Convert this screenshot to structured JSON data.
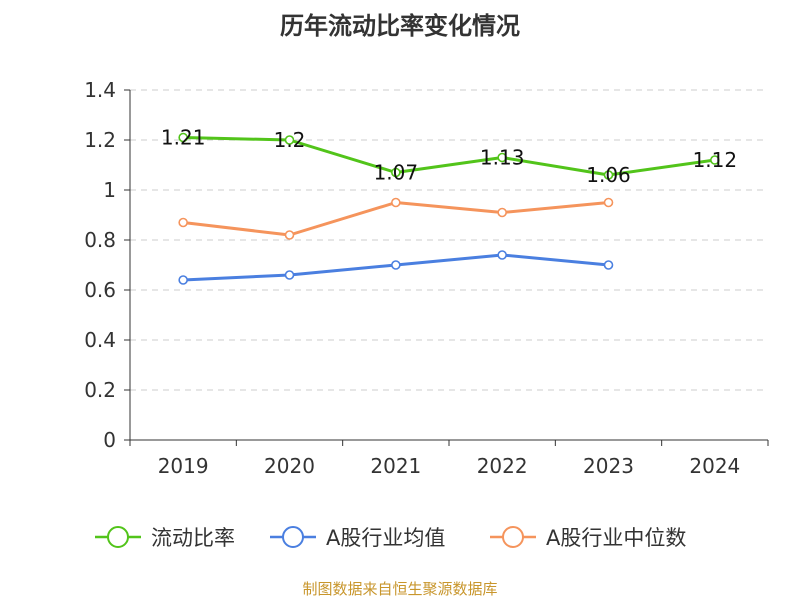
{
  "title": "历年流动比率变化情况",
  "source": "制图数据来自恒生聚源数据库",
  "chart_data": {
    "type": "line",
    "categories": [
      "2019",
      "2020",
      "2021",
      "2022",
      "2023",
      "2024"
    ],
    "ylim": [
      0,
      1.4
    ],
    "yticks": [
      "0",
      "0.2",
      "0.4",
      "0.6",
      "0.8",
      "1",
      "1.2",
      "1.4"
    ],
    "grid": true,
    "legend_position": "bottom",
    "series": [
      {
        "name": "流动比率",
        "color": "#52c41a",
        "values": [
          1.21,
          1.2,
          1.07,
          1.13,
          1.06,
          1.12
        ],
        "labels": [
          "1.21",
          "1.2",
          "1.07",
          "1.13",
          "1.06",
          "1.12"
        ]
      },
      {
        "name": "A股行业均值",
        "color": "#4a7fe0",
        "values": [
          0.64,
          0.66,
          0.7,
          0.74,
          0.7,
          null
        ]
      },
      {
        "name": "A股行业中位数",
        "color": "#f5945c",
        "values": [
          0.87,
          0.82,
          0.95,
          0.91,
          0.95,
          null
        ]
      }
    ]
  }
}
